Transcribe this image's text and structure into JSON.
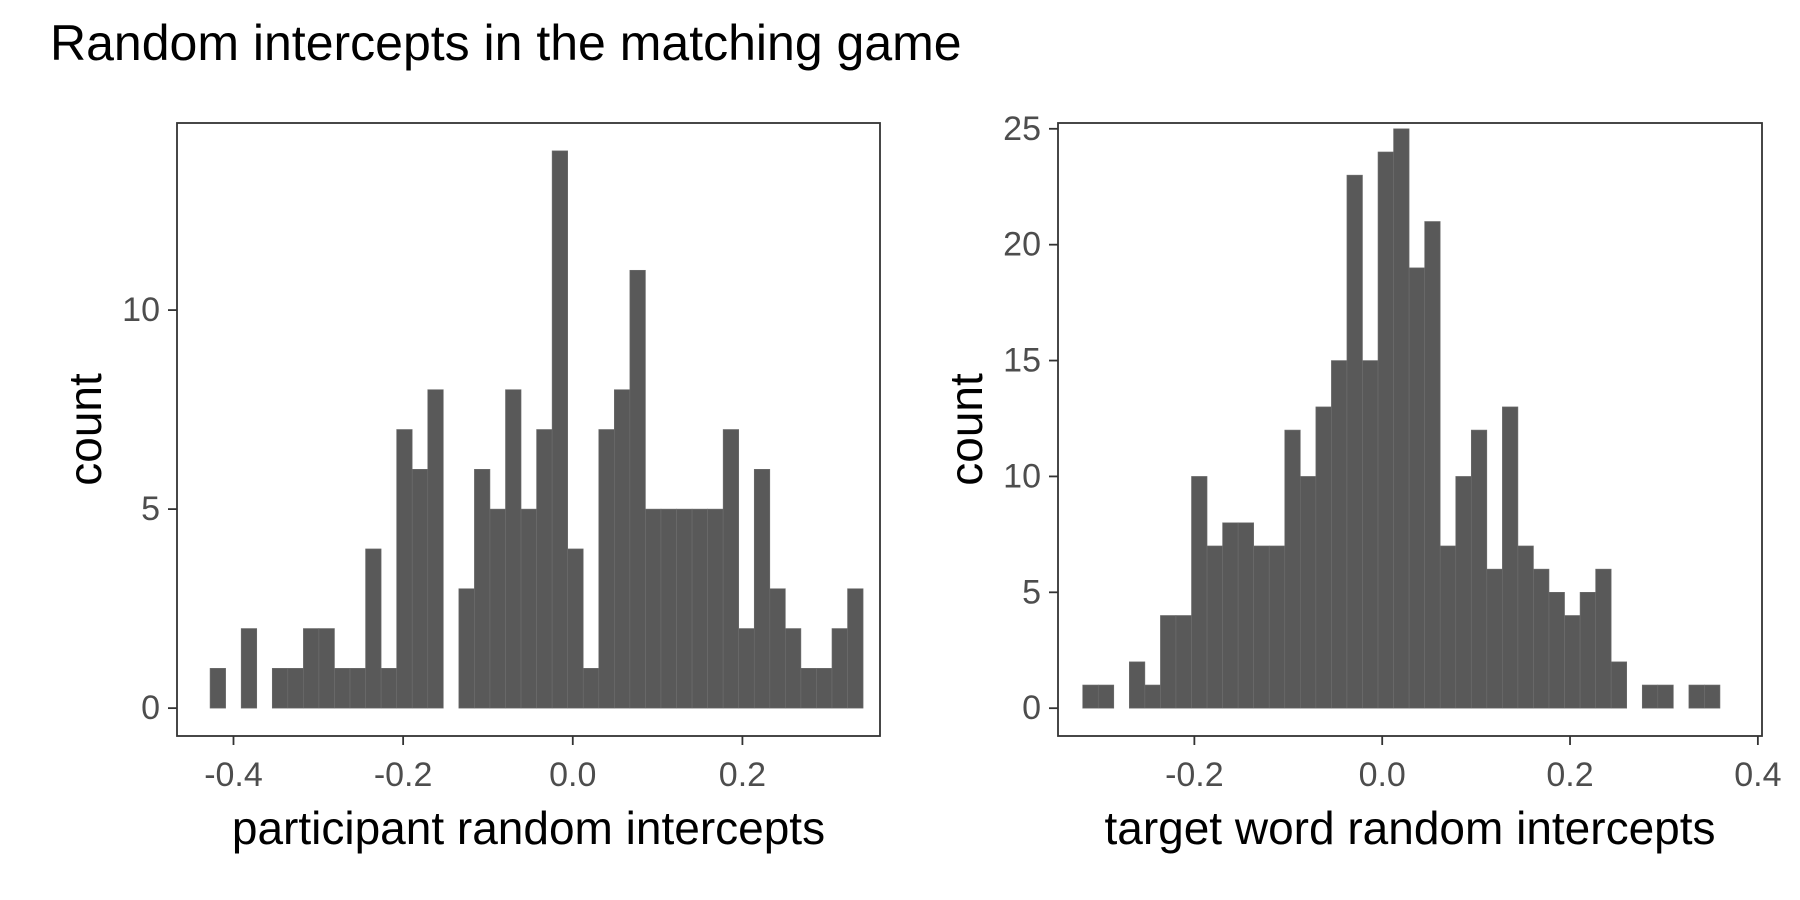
{
  "title": "Random intercepts in the matching game",
  "colors": {
    "bar": "#595959",
    "bar_edge": "#6e6e6e",
    "panel_border": "#333333",
    "tick": "#333333",
    "tick_label": "#4d4d4d"
  },
  "chart_data": [
    {
      "type": "bar",
      "subtype": "histogram",
      "xlabel": "participant random intercepts",
      "ylabel": "count",
      "xlim": [
        -0.4666,
        0.3622
      ],
      "ylim": [
        -0.7,
        14.7
      ],
      "xticks": [
        -0.4,
        -0.2,
        0.0,
        0.2
      ],
      "xtick_labels": [
        "-0.4",
        "-0.2",
        "0.0",
        "0.2"
      ],
      "yticks": [
        0,
        5,
        10
      ],
      "ytick_labels": [
        "0",
        "5",
        "10"
      ],
      "grid": false,
      "bin_start": -0.4276,
      "bin_width": 0.01833,
      "values": [
        1,
        0,
        2,
        0,
        1,
        1,
        2,
        2,
        1,
        1,
        4,
        1,
        7,
        6,
        8,
        0,
        3,
        6,
        5,
        8,
        5,
        7,
        14,
        4,
        1,
        7,
        8,
        11,
        5,
        5,
        5,
        5,
        5,
        7,
        2,
        6,
        3,
        2,
        1,
        1,
        2,
        3
      ]
    },
    {
      "type": "bar",
      "subtype": "histogram",
      "xlabel": "target word random intercepts",
      "ylabel": "count",
      "xlim": [
        -0.3452,
        0.4044
      ],
      "ylim": [
        -1.2,
        25.25
      ],
      "xticks": [
        -0.2,
        0.0,
        0.2,
        0.4
      ],
      "xtick_labels": [
        "-0.2",
        "0.0",
        "0.2",
        "0.4"
      ],
      "yticks": [
        0,
        5,
        10,
        15,
        20,
        25
      ],
      "ytick_labels": [
        "0",
        "5",
        "10",
        "15",
        "20",
        "25"
      ],
      "grid": false,
      "bin_start": -0.3189,
      "bin_width": 0.01655,
      "values": [
        1,
        1,
        0,
        2,
        1,
        4,
        4,
        10,
        7,
        8,
        8,
        7,
        7,
        12,
        10,
        13,
        15,
        23,
        15,
        24,
        25,
        19,
        21,
        7,
        10,
        12,
        6,
        13,
        7,
        6,
        5,
        4,
        5,
        6,
        2,
        0,
        1,
        1,
        0,
        1,
        1
      ]
    }
  ]
}
